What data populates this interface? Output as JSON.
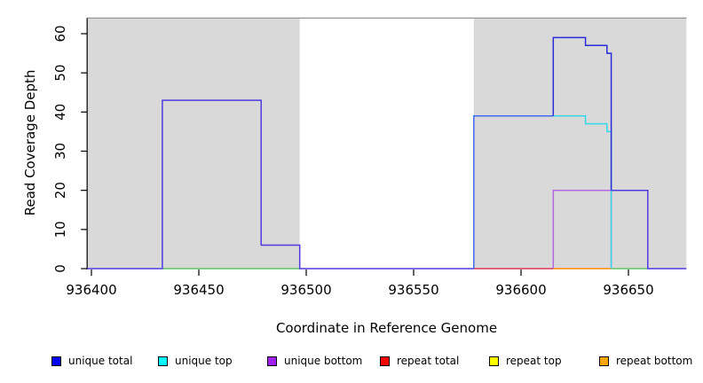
{
  "chart_data": {
    "type": "line",
    "subtype": "step",
    "title": "",
    "xlabel": "Coordinate in Reference Genome",
    "ylabel": "Read Coverage Depth",
    "xlim": [
      936398,
      936677
    ],
    "ylim": [
      0,
      64
    ],
    "grid": false,
    "legend_position": "bottom",
    "x_ticks": [
      {
        "value": 936400,
        "label": "936400"
      },
      {
        "value": 936450,
        "label": "936450"
      },
      {
        "value": 936500,
        "label": "936500"
      },
      {
        "value": 936550,
        "label": "936550"
      },
      {
        "value": 936600,
        "label": "936600"
      },
      {
        "value": 936650,
        "label": "936650"
      }
    ],
    "y_ticks": [
      {
        "value": 0,
        "label": "0"
      },
      {
        "value": 10,
        "label": "10"
      },
      {
        "value": 20,
        "label": "20"
      },
      {
        "value": 30,
        "label": "30"
      },
      {
        "value": 40,
        "label": "40"
      },
      {
        "value": 50,
        "label": "50"
      },
      {
        "value": 60,
        "label": "60"
      }
    ],
    "masked_regions": [
      {
        "start": 936398,
        "end": 936497
      },
      {
        "start": 936578,
        "end": 936677
      }
    ],
    "masked_region_fill": "#d9d9d9",
    "masked_region_top_border": "#8a8a8a",
    "top_border_value": 64,
    "series": [
      {
        "name": "unique total",
        "color": "#0000ff",
        "steps": [
          [
            936398,
            0
          ],
          [
            936433,
            43
          ],
          [
            936479,
            6
          ],
          [
            936497,
            0
          ],
          [
            936578,
            39
          ],
          [
            936615,
            59
          ],
          [
            936630,
            57
          ],
          [
            936640,
            55
          ],
          [
            936642,
            20
          ],
          [
            936659,
            0
          ],
          [
            936677,
            0
          ]
        ]
      },
      {
        "name": "unique top",
        "color": "#00ffff",
        "steps": [
          [
            936398,
            0
          ],
          [
            936578,
            39
          ],
          [
            936630,
            37
          ],
          [
            936640,
            35
          ],
          [
            936642,
            0
          ],
          [
            936677,
            0
          ]
        ]
      },
      {
        "name": "unique bottom",
        "color": "#a020f0",
        "steps": [
          [
            936398,
            0
          ],
          [
            936615,
            20
          ],
          [
            936642,
            0
          ],
          [
            936677,
            0
          ]
        ]
      },
      {
        "name": "repeat total",
        "color": "#ff0000",
        "steps": [
          [
            936398,
            0
          ],
          [
            936677,
            0
          ]
        ]
      },
      {
        "name": "repeat top",
        "color": "#ffff00",
        "steps": [
          [
            936398,
            0
          ],
          [
            936677,
            0
          ]
        ]
      },
      {
        "name": "repeat bottom",
        "color": "#ffa500",
        "steps": [
          [
            936398,
            0
          ],
          [
            936677,
            0
          ]
        ]
      }
    ],
    "rendered_segments": [
      {
        "name": "baseline-green-left",
        "color": "#62c462",
        "points": [
          [
            936433,
            0
          ],
          [
            936497,
            0
          ]
        ]
      },
      {
        "name": "baseline-green-right",
        "color": "#62c462",
        "points": [
          [
            936642,
            0
          ],
          [
            936659,
            0
          ]
        ]
      },
      {
        "name": "baseline-red",
        "color": "#d93a56",
        "points": [
          [
            936578,
            0
          ],
          [
            936615,
            0
          ]
        ]
      },
      {
        "name": "baseline-orange",
        "color": "#ff8c00",
        "points": [
          [
            936615,
            0
          ],
          [
            936642,
            0
          ]
        ]
      },
      {
        "name": "unique-bottom-box",
        "color": "#b668e2",
        "points": [
          [
            936615,
            0
          ],
          [
            936615,
            20
          ],
          [
            936642,
            20
          ],
          [
            936642,
            0
          ]
        ]
      },
      {
        "name": "unique-top-steps",
        "color": "#35d8e8",
        "points": [
          [
            936615,
            39
          ],
          [
            936630,
            39
          ],
          [
            936630,
            37
          ],
          [
            936640,
            37
          ],
          [
            936640,
            35
          ],
          [
            936642,
            35
          ],
          [
            936642,
            0
          ]
        ]
      },
      {
        "name": "unique-total-rise",
        "color": "#3f6cf4",
        "points": [
          [
            936578,
            0
          ],
          [
            936578,
            39
          ],
          [
            936615,
            39
          ]
        ]
      },
      {
        "name": "unique-total-peak",
        "color": "#2b2bd8",
        "points": [
          [
            936615,
            39
          ],
          [
            936615,
            59
          ],
          [
            936630,
            59
          ],
          [
            936630,
            57
          ],
          [
            936640,
            57
          ],
          [
            936640,
            55
          ],
          [
            936642,
            55
          ],
          [
            936642,
            20
          ]
        ]
      },
      {
        "name": "unique-total-left-hump",
        "color": "#4f3be0",
        "points": [
          [
            936398,
            0
          ],
          [
            936433,
            0
          ],
          [
            936433,
            43
          ],
          [
            936479,
            43
          ],
          [
            936479,
            6
          ],
          [
            936497,
            6
          ],
          [
            936497,
            0
          ],
          [
            936578,
            0
          ]
        ]
      },
      {
        "name": "unique-total-right-shoulder",
        "color": "#4f3be0",
        "points": [
          [
            936642,
            20
          ],
          [
            936659,
            20
          ],
          [
            936659,
            0
          ],
          [
            936677,
            0
          ]
        ]
      }
    ],
    "legend": {
      "items": [
        {
          "label": "unique total",
          "color": "#0000ff"
        },
        {
          "label": "unique top",
          "color": "#00ffff"
        },
        {
          "label": "unique bottom",
          "color": "#a020f0"
        },
        {
          "label": "repeat total",
          "color": "#ff0000"
        },
        {
          "label": "repeat top",
          "color": "#ffff00"
        },
        {
          "label": "repeat bottom",
          "color": "#ffa500"
        }
      ]
    }
  }
}
